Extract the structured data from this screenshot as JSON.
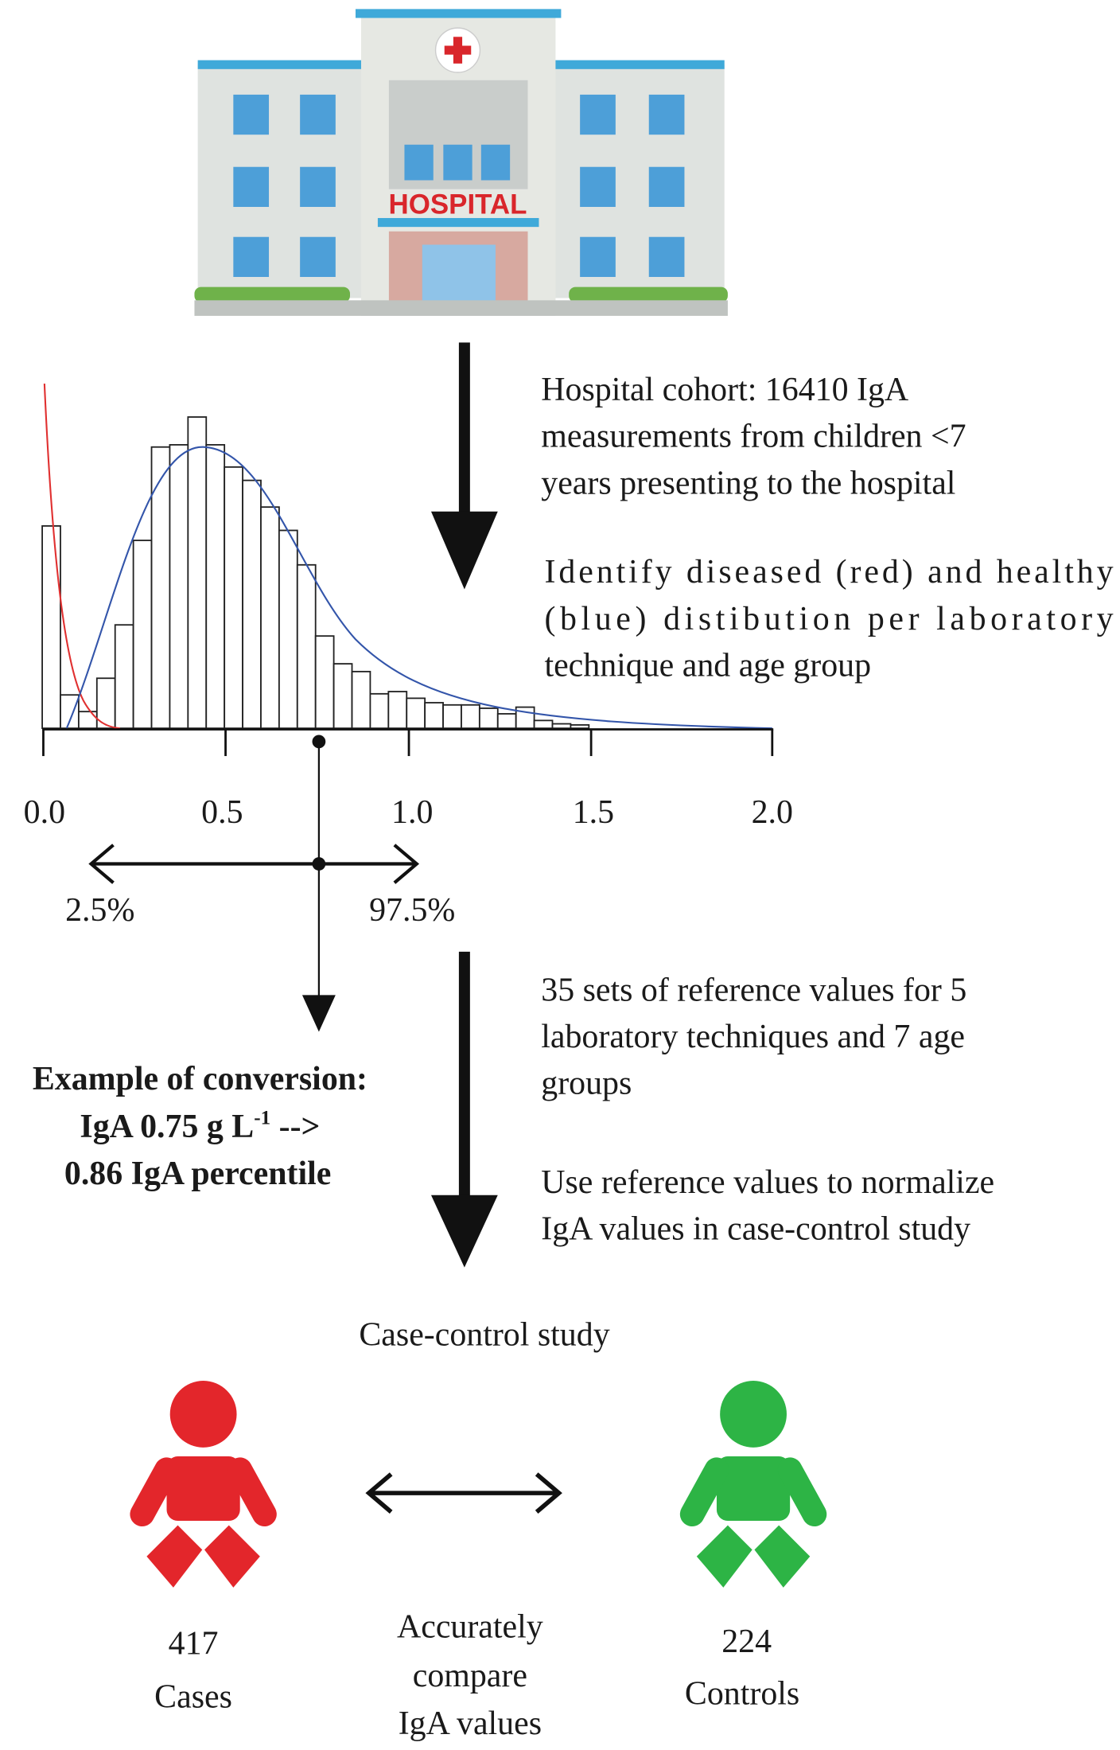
{
  "sign": "HOSPITAL",
  "cohort": [
    "Hospital cohort: 16410 IgA",
    "measurements from children <7",
    "years presenting to the hospital"
  ],
  "identify": [
    "Identify diseased (red) and healthy",
    "(blue) distibution per laboratory",
    "technique and age group"
  ],
  "axis_labels": [
    "0.0",
    "0.5",
    "1.0",
    "1.5",
    "2.0"
  ],
  "range_labels": [
    "2.5%",
    "97.5%"
  ],
  "example": {
    "line1": "Example of conversion:",
    "line2_main": "IgA 0.75 g L",
    "line2_sup": "-1",
    "line2_end": " -->",
    "line3": "0.86 IgA percentile"
  },
  "reference": [
    "35 sets of reference values for 5",
    "laboratory techniques and 7 age",
    "groups"
  ],
  "normalize": [
    "Use reference values to normalize",
    "IgA values in case-control study"
  ],
  "study_title": "Case-control study",
  "cases": {
    "count": "417",
    "label": "Cases"
  },
  "compare": [
    "Accurately",
    "compare",
    "IgA values"
  ],
  "controls": {
    "count": "224",
    "label": "Controls"
  }
}
